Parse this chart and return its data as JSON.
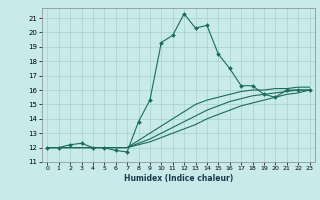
{
  "xlabel": "Humidex (Indice chaleur)",
  "background_color": "#c8eaea",
  "grid_color": "#a8d0d0",
  "line_color": "#1a6b5a",
  "xlim": [
    -0.5,
    23.5
  ],
  "ylim": [
    11,
    21.7
  ],
  "yticks": [
    11,
    12,
    13,
    14,
    15,
    16,
    17,
    18,
    19,
    20,
    21
  ],
  "xticks": [
    0,
    1,
    2,
    3,
    4,
    5,
    6,
    7,
    8,
    9,
    10,
    11,
    12,
    13,
    14,
    15,
    16,
    17,
    18,
    19,
    20,
    21,
    22,
    23
  ],
  "series": [
    {
      "x": [
        0,
        1,
        2,
        3,
        4,
        5,
        6,
        7,
        8,
        9,
        10,
        11,
        12,
        13,
        14,
        15,
        16,
        17,
        18,
        19,
        20,
        21,
        22,
        23
      ],
      "y": [
        12,
        12,
        12.2,
        12.3,
        12,
        12,
        11.8,
        11.7,
        13.8,
        15.3,
        19.3,
        19.8,
        21.3,
        20.3,
        20.5,
        18.5,
        17.5,
        16.3,
        16.3,
        15.7,
        15.5,
        16.0,
        16.0,
        16.0
      ],
      "has_markers": true
    },
    {
      "x": [
        0,
        1,
        2,
        3,
        4,
        5,
        6,
        7,
        8,
        9,
        10,
        11,
        12,
        13,
        14,
        15,
        16,
        17,
        18,
        19,
        20,
        21,
        22,
        23
      ],
      "y": [
        12,
        12,
        12,
        12,
        12,
        12,
        12,
        12,
        12.5,
        13.0,
        13.5,
        14.0,
        14.5,
        15.0,
        15.3,
        15.5,
        15.7,
        15.9,
        16.0,
        16.0,
        16.1,
        16.1,
        16.2,
        16.2
      ],
      "has_markers": false
    },
    {
      "x": [
        0,
        1,
        2,
        3,
        4,
        5,
        6,
        7,
        8,
        9,
        10,
        11,
        12,
        13,
        14,
        15,
        16,
        17,
        18,
        19,
        20,
        21,
        22,
        23
      ],
      "y": [
        12,
        12,
        12,
        12,
        12,
        12,
        12,
        12,
        12.3,
        12.6,
        13.0,
        13.4,
        13.8,
        14.2,
        14.6,
        14.9,
        15.2,
        15.4,
        15.6,
        15.7,
        15.8,
        15.9,
        16.0,
        16.0
      ],
      "has_markers": false
    },
    {
      "x": [
        0,
        1,
        2,
        3,
        4,
        5,
        6,
        7,
        8,
        9,
        10,
        11,
        12,
        13,
        14,
        15,
        16,
        17,
        18,
        19,
        20,
        21,
        22,
        23
      ],
      "y": [
        12,
        12,
        12,
        12,
        12,
        12,
        12,
        12,
        12.2,
        12.4,
        12.7,
        13.0,
        13.3,
        13.6,
        14.0,
        14.3,
        14.6,
        14.9,
        15.1,
        15.3,
        15.5,
        15.7,
        15.8,
        16.0
      ],
      "has_markers": false
    }
  ]
}
